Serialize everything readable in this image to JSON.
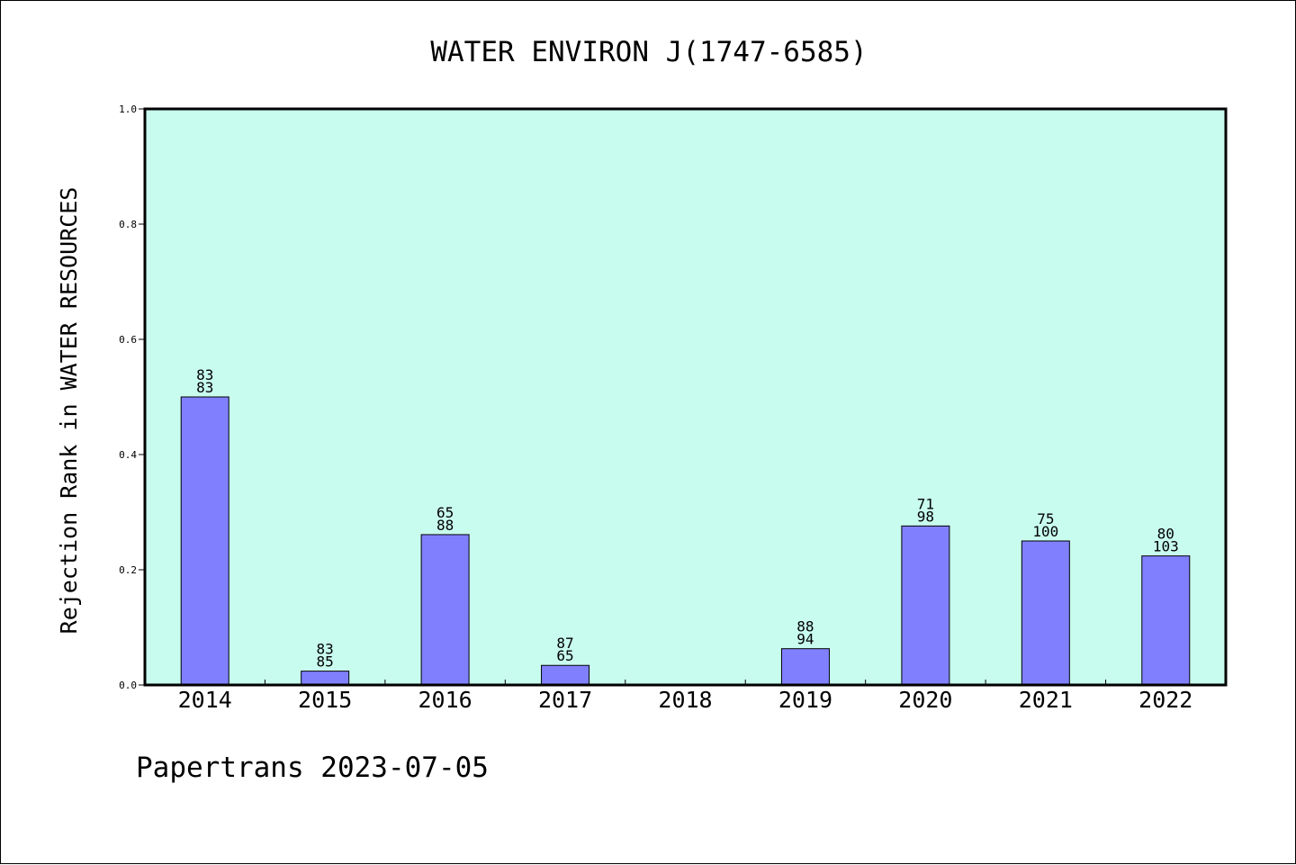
{
  "chart_data": {
    "type": "bar",
    "title": "WATER ENVIRON J(1747-6585)",
    "xlabel": "",
    "ylabel": "Rejection Rank in WATER RESOURCES",
    "ylim": [
      0,
      1.0
    ],
    "yticks": [
      "0.0",
      "0.2",
      "0.4",
      "0.6",
      "0.8",
      "1.0"
    ],
    "categories": [
      "2014",
      "2015",
      "2016",
      "2017",
      "2018",
      "2019",
      "2020",
      "2021",
      "2022"
    ],
    "values": [
      0.5,
      0.024,
      0.261,
      0.034,
      0,
      0.063,
      0.276,
      0.25,
      0.224
    ],
    "labels_top": [
      "83",
      "83",
      "65",
      "87",
      "",
      "88",
      "71",
      "75",
      "80"
    ],
    "labels_bottom": [
      "83",
      "85",
      "88",
      "65",
      "",
      "94",
      "98",
      "100",
      "103"
    ],
    "grid": false,
    "colors": {
      "plot_background": "#c8fcee",
      "bar_fill": "#8080ff",
      "bar_stroke": "#000000"
    }
  },
  "footer": {
    "text": "Papertrans 2023-07-05"
  }
}
